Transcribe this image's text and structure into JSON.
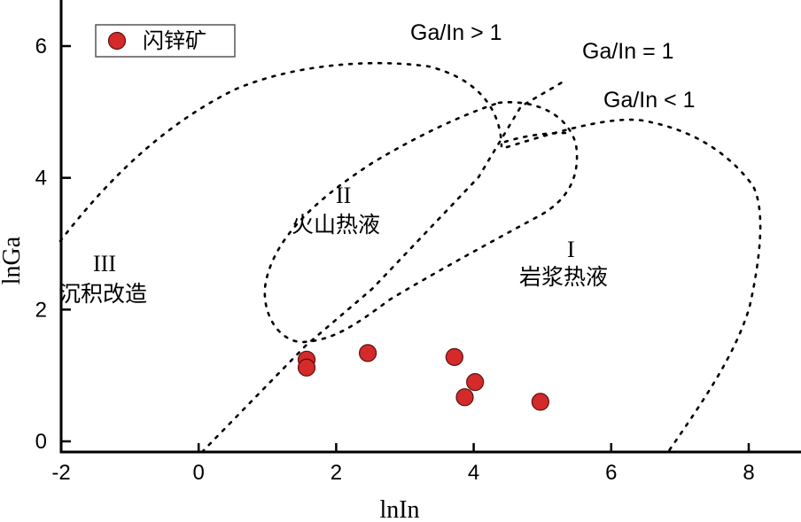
{
  "chart_data": {
    "type": "scatter",
    "title": "",
    "xlabel": "lnIn",
    "ylabel": "lnGa",
    "xlim": [
      -2.3,
      8.4
    ],
    "ylim": [
      -0.1,
      6.55
    ],
    "xticks": [
      -2,
      0,
      2,
      4,
      6,
      8
    ],
    "yticks": [
      0,
      2,
      4,
      6
    ],
    "grid": false,
    "legend": {
      "position": "top-left",
      "entries": [
        "闪锌矿"
      ]
    },
    "series": [
      {
        "name": "闪锌矿",
        "color": "#d42a2a",
        "points": [
          {
            "x": 1.57,
            "y": 1.24
          },
          {
            "x": 1.57,
            "y": 1.12
          },
          {
            "x": 2.46,
            "y": 1.34
          },
          {
            "x": 3.72,
            "y": 1.28
          },
          {
            "x": 4.02,
            "y": 0.9
          },
          {
            "x": 3.87,
            "y": 0.67
          },
          {
            "x": 4.97,
            "y": 0.6
          }
        ]
      }
    ],
    "annotations": {
      "ratio_greater": "Ga/In > 1",
      "ratio_equal": "Ga/In = 1",
      "ratio_less": "Ga/In < 1",
      "field_II_numeral": "II",
      "field_II_name": "火山热液",
      "field_I_numeral": "I",
      "field_I_name": "岩浆热液",
      "field_III_numeral": "III",
      "field_III_name": "沉积改造"
    }
  }
}
